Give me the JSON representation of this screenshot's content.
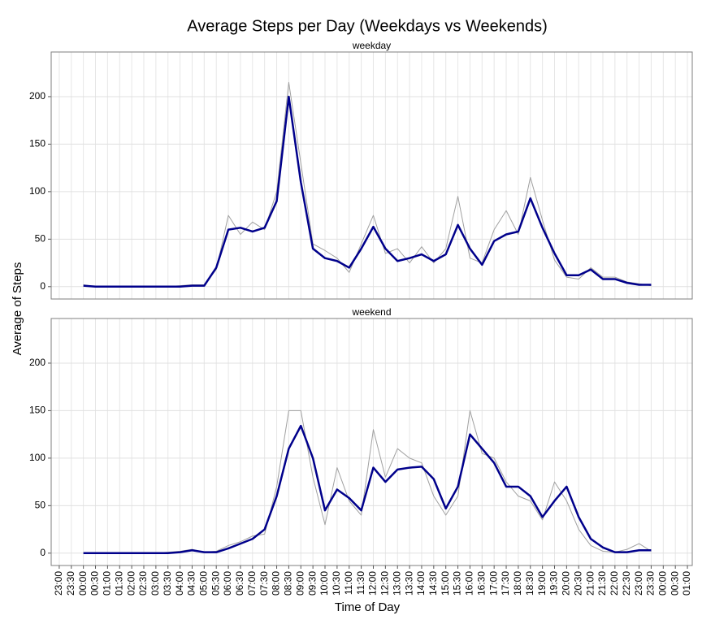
{
  "chart_data": {
    "type": "line",
    "title": "Average Steps per Day (Weekdays vs Weekends)",
    "x_label": "Time of Day",
    "y_label": "Average of Steps",
    "grid": true,
    "xlim": [
      -80,
      1512
    ],
    "ylim": [
      -13,
      247
    ],
    "yticks": [
      0,
      50,
      100,
      150,
      200
    ],
    "xticks": [
      {
        "value": -60,
        "label": "23:00"
      },
      {
        "value": -30,
        "label": "23:30"
      },
      {
        "value": 0,
        "label": "00:00"
      },
      {
        "value": 30,
        "label": "00:30"
      },
      {
        "value": 60,
        "label": "01:00"
      },
      {
        "value": 90,
        "label": "01:30"
      },
      {
        "value": 120,
        "label": "02:00"
      },
      {
        "value": 150,
        "label": "02:30"
      },
      {
        "value": 180,
        "label": "03:00"
      },
      {
        "value": 210,
        "label": "03:30"
      },
      {
        "value": 240,
        "label": "04:00"
      },
      {
        "value": 270,
        "label": "04:30"
      },
      {
        "value": 300,
        "label": "05:00"
      },
      {
        "value": 330,
        "label": "05:30"
      },
      {
        "value": 360,
        "label": "06:00"
      },
      {
        "value": 390,
        "label": "06:30"
      },
      {
        "value": 420,
        "label": "07:00"
      },
      {
        "value": 450,
        "label": "07:30"
      },
      {
        "value": 480,
        "label": "08:00"
      },
      {
        "value": 510,
        "label": "08:30"
      },
      {
        "value": 540,
        "label": "09:00"
      },
      {
        "value": 570,
        "label": "09:30"
      },
      {
        "value": 600,
        "label": "10:00"
      },
      {
        "value": 630,
        "label": "10:30"
      },
      {
        "value": 660,
        "label": "11:00"
      },
      {
        "value": 690,
        "label": "11:30"
      },
      {
        "value": 720,
        "label": "12:00"
      },
      {
        "value": 750,
        "label": "12:30"
      },
      {
        "value": 780,
        "label": "13:00"
      },
      {
        "value": 810,
        "label": "13:30"
      },
      {
        "value": 840,
        "label": "14:00"
      },
      {
        "value": 870,
        "label": "14:30"
      },
      {
        "value": 900,
        "label": "15:00"
      },
      {
        "value": 930,
        "label": "15:30"
      },
      {
        "value": 960,
        "label": "16:00"
      },
      {
        "value": 990,
        "label": "16:30"
      },
      {
        "value": 1020,
        "label": "17:00"
      },
      {
        "value": 1050,
        "label": "17:30"
      },
      {
        "value": 1080,
        "label": "18:00"
      },
      {
        "value": 1110,
        "label": "18:30"
      },
      {
        "value": 1140,
        "label": "19:00"
      },
      {
        "value": 1170,
        "label": "19:30"
      },
      {
        "value": 1200,
        "label": "20:00"
      },
      {
        "value": 1230,
        "label": "20:30"
      },
      {
        "value": 1260,
        "label": "21:00"
      },
      {
        "value": 1290,
        "label": "21:30"
      },
      {
        "value": 1320,
        "label": "22:00"
      },
      {
        "value": 1350,
        "label": "22:30"
      },
      {
        "value": 1380,
        "label": "23:00"
      },
      {
        "value": 1410,
        "label": "23:30"
      },
      {
        "value": 1440,
        "label": "00:00"
      },
      {
        "value": 1470,
        "label": "00:30"
      },
      {
        "value": 1500,
        "label": "01:00"
      }
    ],
    "x": [
      0,
      30,
      60,
      90,
      120,
      150,
      180,
      210,
      240,
      270,
      300,
      330,
      360,
      390,
      420,
      450,
      480,
      510,
      540,
      570,
      600,
      630,
      660,
      690,
      720,
      750,
      780,
      810,
      840,
      870,
      900,
      930,
      960,
      990,
      1020,
      1050,
      1080,
      1110,
      1140,
      1170,
      1200,
      1230,
      1260,
      1290,
      1320,
      1350,
      1380,
      1410
    ],
    "panels": [
      {
        "title": "weekday",
        "series": [
          {
            "color": "#a0a0a0",
            "width": 1,
            "values": [
              2,
              0,
              0,
              0,
              0,
              0,
              0,
              0,
              1,
              2,
              2,
              18,
              75,
              55,
              68,
              60,
              100,
              215,
              130,
              45,
              38,
              30,
              15,
              45,
              75,
              35,
              40,
              25,
              42,
              25,
              40,
              95,
              30,
              25,
              60,
              80,
              55,
              115,
              70,
              28,
              10,
              8,
              20,
              10,
              10,
              5,
              3,
              1
            ]
          },
          {
            "color": "#00008b",
            "width": 2.5,
            "values": [
              1,
              0,
              0,
              0,
              0,
              0,
              0,
              0,
              0,
              1,
              1,
              20,
              60,
              62,
              58,
              62,
              90,
              200,
              110,
              40,
              30,
              27,
              20,
              40,
              63,
              40,
              27,
              30,
              34,
              27,
              34,
              65,
              40,
              23,
              48,
              55,
              58,
              93,
              62,
              35,
              12,
              12,
              18,
              8,
              8,
              4,
              2,
              2
            ]
          }
        ]
      },
      {
        "title": "weekend",
        "series": [
          {
            "color": "#a0a0a0",
            "width": 1,
            "values": [
              0,
              0,
              0,
              0,
              0,
              0,
              0,
              1,
              2,
              4,
              1,
              2,
              8,
              12,
              18,
              20,
              70,
              150,
              150,
              80,
              30,
              90,
              55,
              40,
              130,
              80,
              110,
              100,
              95,
              60,
              40,
              60,
              150,
              105,
              100,
              75,
              60,
              55,
              35,
              75,
              55,
              25,
              8,
              2,
              1,
              4,
              10,
              2
            ]
          },
          {
            "color": "#00008b",
            "width": 2.5,
            "values": [
              0,
              0,
              0,
              0,
              0,
              0,
              0,
              0,
              1,
              3,
              1,
              1,
              5,
              10,
              15,
              25,
              60,
              110,
              134,
              100,
              45,
              67,
              58,
              45,
              90,
              75,
              88,
              90,
              91,
              78,
              47,
              70,
              125,
              110,
              95,
              70,
              70,
              60,
              38,
              55,
              70,
              38,
              15,
              6,
              1,
              1,
              3,
              3
            ]
          }
        ]
      }
    ]
  }
}
